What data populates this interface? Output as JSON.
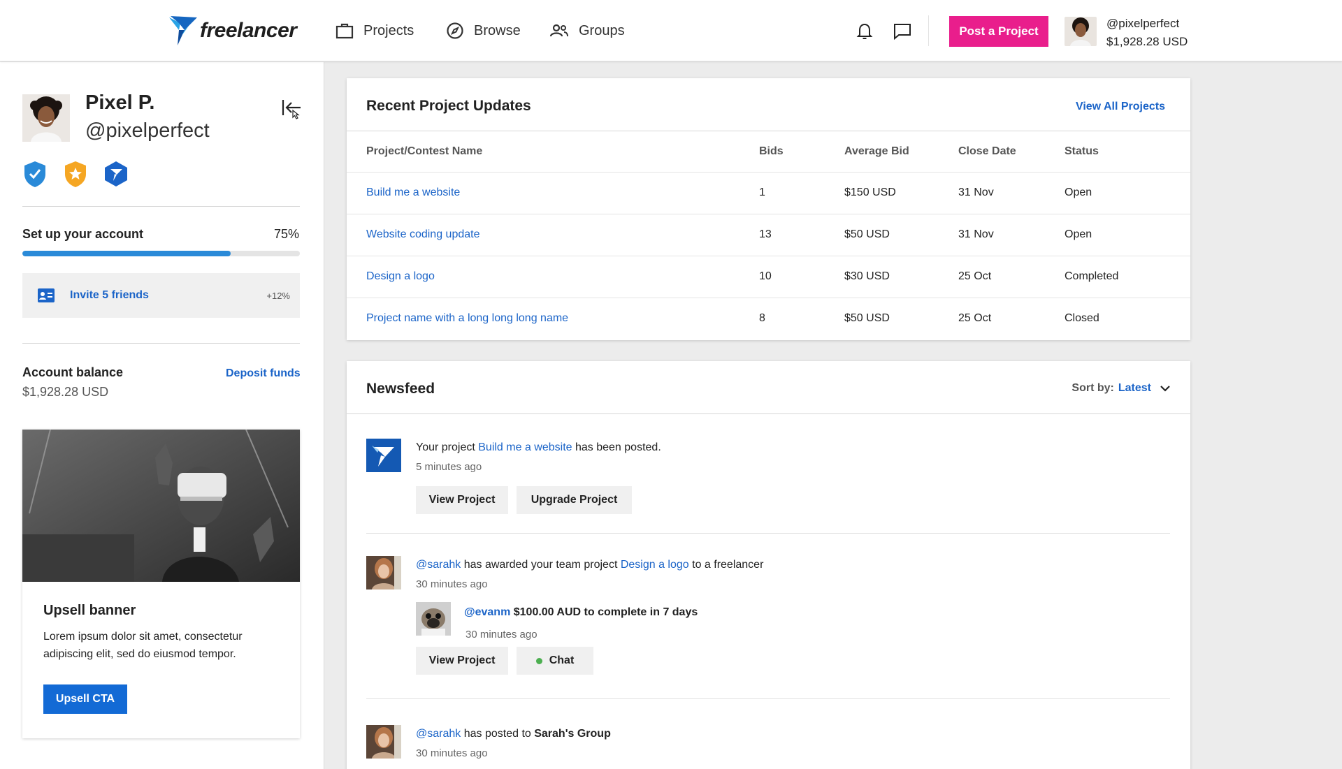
{
  "header": {
    "logo_text": "freelancer",
    "nav": [
      "Projects",
      "Browse",
      "Groups"
    ],
    "post_button": "Post a Project",
    "username": "@pixelperfect",
    "balance": "$1,928.28 USD"
  },
  "sidebar": {
    "name": "Pixel P.",
    "handle": "@pixelperfect",
    "setup_title": "Set up your account",
    "setup_percent": "75%",
    "setup_progress": 0.75,
    "invite_label": "Invite 5 friends",
    "invite_bonus": "+12%",
    "balance_title": "Account balance",
    "balance_value": "$1,928.28 USD",
    "deposit_link": "Deposit funds",
    "upsell": {
      "title": "Upsell banner",
      "text": "Lorem ipsum dolor sit amet, consectetur adipiscing elit, sed do eiusmod tempor.",
      "cta": "Upsell CTA"
    }
  },
  "updates": {
    "title": "Recent Project Updates",
    "view_all": "View All Projects",
    "columns": [
      "Project/Contest Name",
      "Bids",
      "Average Bid",
      "Close Date",
      "Status"
    ],
    "rows": [
      [
        "Build me a website",
        "1",
        "$150 USD",
        "31 Nov",
        "Open"
      ],
      [
        "Website coding update",
        "13",
        "$50 USD",
        "31 Nov",
        "Open"
      ],
      [
        "Design a logo",
        "10",
        "$30 USD",
        "25 Oct",
        "Completed"
      ],
      [
        "Project name with a long long long name",
        "8",
        "$50 USD",
        "25 Oct",
        "Closed"
      ]
    ]
  },
  "newsfeed": {
    "title": "Newsfeed",
    "sort_label": "Sort by:",
    "sort_value": "Latest",
    "item1": {
      "pre": "Your project ",
      "link": "Build me a website",
      "post": " has been posted.",
      "time": "5 minutes ago",
      "btn1": "View Project",
      "btn2": "Upgrade Project"
    },
    "item2": {
      "user": "@sarahk",
      "pre": " has awarded your team project ",
      "link": "Design a logo",
      "post": " to a freelancer",
      "time": "30 minutes ago",
      "bid_user": "@evanm",
      "bid_text": " $100.00 AUD to complete in 7 days",
      "bid_time": "30 minutes ago",
      "btn1": "View Project",
      "btn2": "Chat"
    },
    "item3": {
      "user": "@sarahk",
      "pre": " has posted to ",
      "group": "Sarah's Group",
      "time": "30 minutes ago"
    }
  },
  "colors": {
    "accent_pink": "#e91e8c",
    "link_blue": "#1b64c8",
    "progress_blue": "#2a8ad8",
    "cta_blue": "#136ad5"
  }
}
